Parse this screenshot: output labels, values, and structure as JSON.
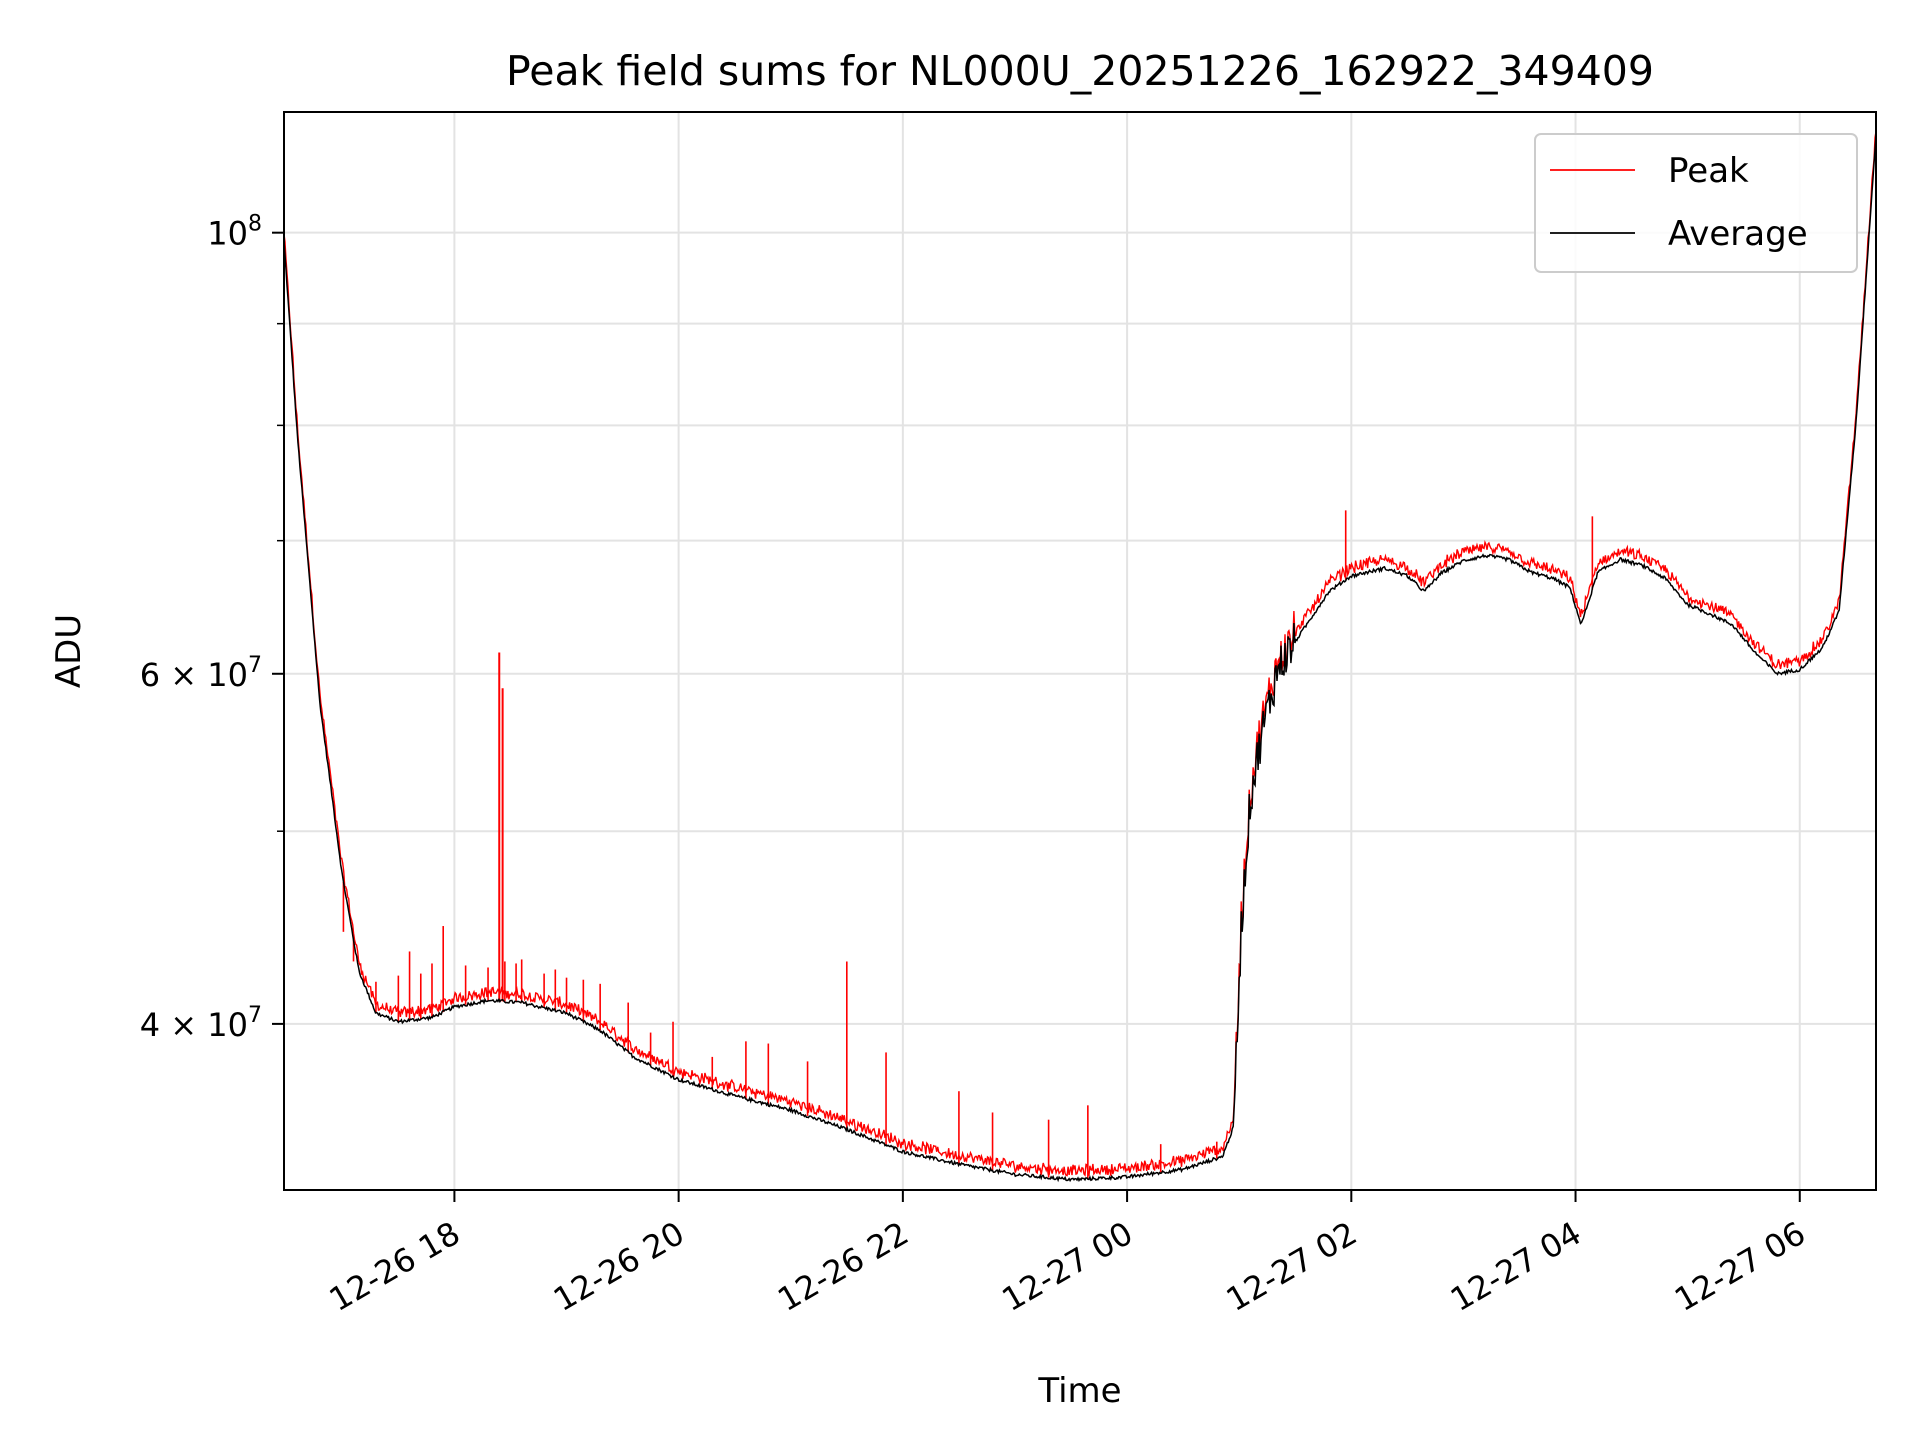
{
  "chart_data": {
    "type": "line",
    "title": "Peak field sums for NL000U_20251226_162922_349409",
    "xlabel": "Time",
    "ylabel": "ADU",
    "yscale": "log",
    "grid": true,
    "legend_position": "top-right",
    "xlim_hours": [
      -1.52,
      12.68
    ],
    "ylim": [
      33000000,
      115000000
    ],
    "x_ticks": [
      {
        "hour": 0,
        "label": "12-26 18"
      },
      {
        "hour": 2,
        "label": "12-26 20"
      },
      {
        "hour": 4,
        "label": "12-26 22"
      },
      {
        "hour": 6,
        "label": "12-27 00"
      },
      {
        "hour": 8,
        "label": "12-27 02"
      },
      {
        "hour": 10,
        "label": "12-27 04"
      },
      {
        "hour": 12,
        "label": "12-27 06"
      }
    ],
    "y_major_ticks": [
      {
        "value": 100000000,
        "base": "10",
        "exp": "8",
        "mant": ""
      },
      {
        "value": 60000000,
        "base": "10",
        "exp": "7",
        "mant": "6 × "
      },
      {
        "value": 40000000,
        "base": "10",
        "exp": "7",
        "mant": "4 × "
      }
    ],
    "y_minor_ticks": [
      50000000,
      70000000,
      80000000,
      90000000
    ],
    "series": [
      {
        "name": "Average",
        "color": "#000000",
        "points": [
          [
            -1.52,
            99000000
          ],
          [
            -1.4,
            79000000
          ],
          [
            -1.2,
            58000000
          ],
          [
            -1.0,
            47500000
          ],
          [
            -0.85,
            42500000
          ],
          [
            -0.7,
            40500000
          ],
          [
            -0.5,
            40100000
          ],
          [
            -0.2,
            40300000
          ],
          [
            0.0,
            40800000
          ],
          [
            0.3,
            41100000
          ],
          [
            0.6,
            41000000
          ],
          [
            1.0,
            40500000
          ],
          [
            1.3,
            39700000
          ],
          [
            1.6,
            38500000
          ],
          [
            2.0,
            37500000
          ],
          [
            2.5,
            36800000
          ],
          [
            3.0,
            36200000
          ],
          [
            3.5,
            35400000
          ],
          [
            4.0,
            34500000
          ],
          [
            4.5,
            34000000
          ],
          [
            5.0,
            33600000
          ],
          [
            5.5,
            33400000
          ],
          [
            6.0,
            33500000
          ],
          [
            6.5,
            33800000
          ],
          [
            6.85,
            34300000
          ],
          [
            6.95,
            35500000
          ],
          [
            7.02,
            45000000
          ],
          [
            7.1,
            52000000
          ],
          [
            7.2,
            56000000
          ],
          [
            7.35,
            60500000
          ],
          [
            7.6,
            63500000
          ],
          [
            7.8,
            66000000
          ],
          [
            8.0,
            67200000
          ],
          [
            8.3,
            67800000
          ],
          [
            8.5,
            67200000
          ],
          [
            8.65,
            66000000
          ],
          [
            8.8,
            67400000
          ],
          [
            9.0,
            68400000
          ],
          [
            9.2,
            68800000
          ],
          [
            9.4,
            68500000
          ],
          [
            9.6,
            67500000
          ],
          [
            9.8,
            67000000
          ],
          [
            9.95,
            66300000
          ],
          [
            10.05,
            63500000
          ],
          [
            10.2,
            67500000
          ],
          [
            10.4,
            68500000
          ],
          [
            10.6,
            68000000
          ],
          [
            10.8,
            67000000
          ],
          [
            11.0,
            65000000
          ],
          [
            11.2,
            64300000
          ],
          [
            11.4,
            63500000
          ],
          [
            11.6,
            61500000
          ],
          [
            11.8,
            60000000
          ],
          [
            12.0,
            60300000
          ],
          [
            12.2,
            61800000
          ],
          [
            12.35,
            64500000
          ],
          [
            12.5,
            80000000
          ],
          [
            12.68,
            112000000
          ]
        ]
      },
      {
        "name": "Peak",
        "color": "#ff0000",
        "spikes": [
          [
            -0.99,
            44500000
          ],
          [
            -0.9,
            43000000
          ],
          [
            -0.7,
            42000000
          ],
          [
            -0.5,
            42300000
          ],
          [
            -0.4,
            43500000
          ],
          [
            -0.3,
            42400000
          ],
          [
            -0.2,
            42900000
          ],
          [
            -0.1,
            44800000
          ],
          [
            0.1,
            42800000
          ],
          [
            0.3,
            42700000
          ],
          [
            0.45,
            43000000
          ],
          [
            0.55,
            42900000
          ],
          [
            0.6,
            43100000
          ],
          [
            0.8,
            42400000
          ],
          [
            0.9,
            42600000
          ],
          [
            1.0,
            42200000
          ],
          [
            1.15,
            42100000
          ],
          [
            1.3,
            41900000
          ],
          [
            1.55,
            41000000
          ],
          [
            1.75,
            39600000
          ],
          [
            1.95,
            40100000
          ],
          [
            2.3,
            38500000
          ],
          [
            2.6,
            39200000
          ],
          [
            2.8,
            39100000
          ],
          [
            3.15,
            38300000
          ],
          [
            3.5,
            43000000
          ],
          [
            3.85,
            38700000
          ],
          [
            4.5,
            37000000
          ],
          [
            4.8,
            36100000
          ],
          [
            5.3,
            35800000
          ],
          [
            5.65,
            36400000
          ],
          [
            6.3,
            34800000
          ],
          [
            6.8,
            34900000
          ],
          [
            7.95,
            72500000
          ],
          [
            10.15,
            72000000
          ]
        ],
        "big_spike": [
          [
            0.4,
            61500000
          ],
          [
            0.43,
            59000000
          ]
        ]
      }
    ]
  }
}
